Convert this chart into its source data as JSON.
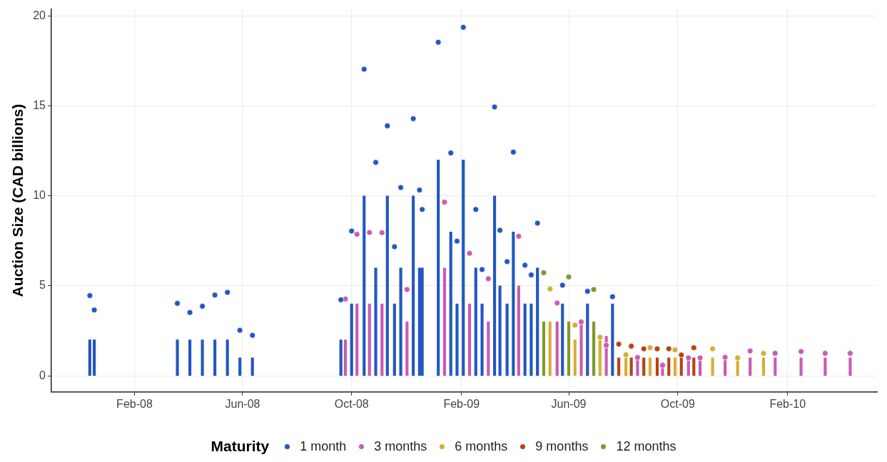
{
  "chart_data": {
    "type": "bar",
    "ylabel": "Auction Size (CAD billions)",
    "legend_title": "Maturity",
    "legend": "bottom",
    "grid": true,
    "marker": "circle",
    "xlim": [
      "2007-10-31",
      "2010-05-12"
    ],
    "xticks": [
      {
        "value": "2008-02-01",
        "label": "Feb-08"
      },
      {
        "value": "2008-06-01",
        "label": "Jun-08"
      },
      {
        "value": "2008-10-01",
        "label": "Oct-08"
      },
      {
        "value": "2009-02-01",
        "label": "Feb-09"
      },
      {
        "value": "2009-06-01",
        "label": "Jun-09"
      },
      {
        "value": "2009-10-01",
        "label": "Oct-09"
      },
      {
        "value": "2010-02-01",
        "label": "Feb-10"
      }
    ],
    "ylim": [
      -0.9,
      20.4
    ],
    "yticks": [
      0,
      5,
      10,
      15,
      20
    ],
    "series": [
      {
        "type": "bar",
        "color": "#2257c0",
        "x": [
          "2007-12-13",
          "2007-12-18",
          "2008-03-20",
          "2008-04-03",
          "2008-04-17",
          "2008-05-01",
          "2008-05-15",
          "2008-05-29",
          "2008-06-12",
          "2008-09-19",
          "2008-10-01",
          "2008-10-15",
          "2008-10-28",
          "2008-11-10",
          "2008-11-18",
          "2008-11-25",
          "2008-12-09",
          "2008-12-16",
          "2008-12-19",
          "2009-01-06",
          "2009-01-20",
          "2009-01-27",
          "2009-02-03",
          "2009-02-17",
          "2009-02-24",
          "2009-03-10",
          "2009-03-16",
          "2009-03-24",
          "2009-03-31",
          "2009-04-13",
          "2009-04-20",
          "2009-04-27",
          "2009-05-25",
          "2009-06-22",
          "2009-07-20"
        ],
        "values": [
          2,
          2,
          2,
          2,
          2,
          2,
          2,
          1,
          1,
          2,
          4,
          10,
          6,
          10,
          4,
          6,
          10,
          6,
          6,
          12,
          8,
          4,
          12,
          6,
          4,
          10,
          5,
          4,
          8,
          4,
          4,
          6,
          4,
          4,
          4
        ]
      },
      {
        "type": "bar",
        "color": "#c95bb5",
        "x": [
          "2008-09-24",
          "2008-10-07",
          "2008-10-21",
          "2008-11-04",
          "2008-12-02",
          "2009-01-13",
          "2009-02-10",
          "2009-03-03",
          "2009-04-06",
          "2009-05-19",
          "2009-06-15",
          "2009-07-13",
          "2009-08-17",
          "2009-09-14",
          "2009-10-13",
          "2009-10-26",
          "2009-11-23",
          "2009-12-21",
          "2010-01-18",
          "2010-02-16",
          "2010-03-15",
          "2010-04-12"
        ],
        "values": [
          2,
          4,
          4,
          4,
          3,
          6,
          4,
          3,
          5,
          3,
          3,
          2.2,
          1,
          0.75,
          1,
          1,
          1,
          1,
          1,
          1,
          1,
          1
        ]
      },
      {
        "type": "bar",
        "color": "#d4af37",
        "x": [
          "2009-05-11",
          "2009-06-08",
          "2009-07-06",
          "2009-08-04",
          "2009-08-31",
          "2009-09-28",
          "2009-11-09",
          "2009-12-07",
          "2010-01-05"
        ],
        "values": [
          3,
          2,
          2,
          1,
          1,
          1,
          1,
          1,
          1
        ]
      },
      {
        "type": "bar",
        "color": "#b5450f",
        "x": [
          "2009-07-27",
          "2009-08-10",
          "2009-08-24",
          "2009-09-08",
          "2009-09-21",
          "2009-10-05",
          "2009-10-19"
        ],
        "values": [
          1,
          1,
          1,
          1,
          1,
          1,
          1
        ]
      },
      {
        "type": "bar",
        "color": "#7f9a2a",
        "x": [
          "2009-05-04",
          "2009-06-01",
          "2009-06-29"
        ],
        "values": [
          3,
          3,
          3
        ]
      },
      {
        "type": "scatter",
        "name": "1 month",
        "color": "#2257c0",
        "x": [
          "2007-12-13",
          "2007-12-18",
          "2008-03-20",
          "2008-04-03",
          "2008-04-17",
          "2008-05-01",
          "2008-05-15",
          "2008-05-29",
          "2008-06-12",
          "2008-09-19",
          "2008-10-01",
          "2008-10-15",
          "2008-10-28",
          "2008-11-10",
          "2008-11-18",
          "2008-11-25",
          "2008-12-09",
          "2008-12-16",
          "2008-12-19",
          "2009-01-06",
          "2009-01-20",
          "2009-01-27",
          "2009-02-03",
          "2009-02-17",
          "2009-02-24",
          "2009-03-10",
          "2009-03-16",
          "2009-03-24",
          "2009-03-31",
          "2009-04-13",
          "2009-04-20",
          "2009-04-27",
          "2009-05-25",
          "2009-06-22",
          "2009-07-20"
        ],
        "values": [
          4.46,
          3.66,
          4.03,
          3.52,
          3.87,
          4.49,
          4.64,
          2.53,
          2.25,
          4.23,
          8.05,
          17.05,
          11.87,
          13.9,
          7.18,
          10.47,
          14.3,
          10.33,
          9.25,
          18.55,
          12.39,
          7.49,
          19.38,
          9.25,
          5.91,
          14.95,
          8.09,
          6.35,
          12.44,
          6.15,
          5.61,
          8.49,
          5.04,
          4.7,
          4.4
        ]
      },
      {
        "type": "scatter",
        "name": "3 months",
        "color": "#c95bb5",
        "x": [
          "2008-09-24",
          "2008-10-07",
          "2008-10-21",
          "2008-11-04",
          "2008-12-02",
          "2009-01-13",
          "2009-02-10",
          "2009-03-03",
          "2009-04-06",
          "2009-05-19",
          "2009-06-15",
          "2009-07-13",
          "2009-08-17",
          "2009-09-14",
          "2009-10-13",
          "2009-10-26",
          "2009-11-23",
          "2009-12-21",
          "2010-01-18",
          "2010-02-16",
          "2010-03-15",
          "2010-04-12"
        ],
        "values": [
          4.27,
          7.87,
          7.97,
          7.96,
          4.8,
          9.66,
          6.81,
          5.4,
          7.76,
          4.05,
          3.0,
          1.7,
          1.02,
          0.58,
          1.0,
          1.0,
          1.03,
          1.38,
          1.25,
          1.35,
          1.25,
          1.25
        ]
      },
      {
        "type": "scatter",
        "name": "6 months",
        "color": "#d4af37",
        "x": [
          "2009-05-11",
          "2009-06-08",
          "2009-07-06",
          "2009-08-04",
          "2009-08-31",
          "2009-09-28",
          "2009-11-09",
          "2009-12-07",
          "2010-01-05"
        ],
        "values": [
          4.83,
          2.82,
          2.15,
          1.17,
          1.56,
          1.44,
          1.5,
          1.0,
          1.25
        ]
      },
      {
        "type": "scatter",
        "name": "9 months",
        "color": "#b5450f",
        "x": [
          "2009-07-27",
          "2009-08-10",
          "2009-08-24",
          "2009-09-08",
          "2009-09-21",
          "2009-10-05",
          "2009-10-19"
        ],
        "values": [
          1.76,
          1.65,
          1.5,
          1.5,
          1.5,
          1.16,
          1.56
        ]
      },
      {
        "type": "scatter",
        "name": "12 months",
        "color": "#7f9a2a",
        "x": [
          "2009-05-04",
          "2009-06-01",
          "2009-06-29"
        ],
        "values": [
          5.73,
          5.5,
          4.8
        ]
      }
    ]
  }
}
